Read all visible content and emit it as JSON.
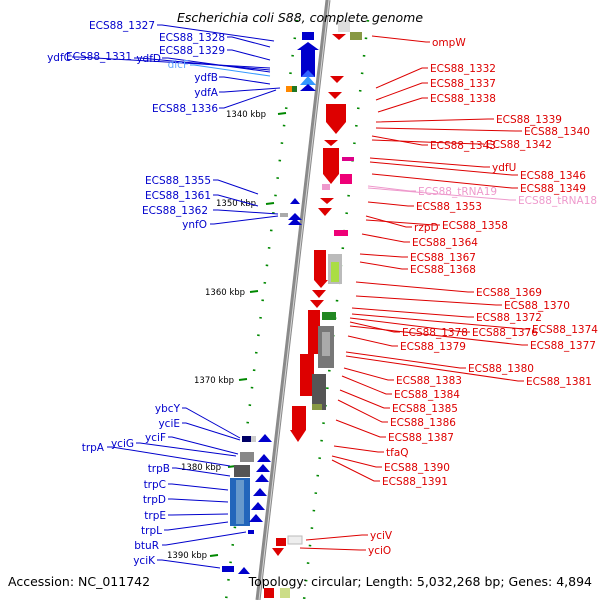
{
  "title": "Escherichia coli S88, complete genome",
  "footer": {
    "accession": "Accession: NC_011742",
    "topology": "Topology: circular; Length: 5,032,268 bp; Genes: 4,894"
  },
  "colors": {
    "forward": "#0000cc",
    "reverse": "#dd0000",
    "rna": "#ee99cc",
    "trna_dark": "#aaccee",
    "tick": "#008800",
    "backbone": "#888888"
  },
  "ticks": [
    "1340 kbp",
    "1350 kbp",
    "1360 kbp",
    "1370 kbp",
    "1380 kbp",
    "1390 kbp"
  ],
  "left_labels": [
    {
      "id": "ECS88_1327",
      "text": "ECS88_1327"
    },
    {
      "id": "ECS88_1328",
      "text": "ECS88_1328"
    },
    {
      "id": "ECS88_1329",
      "text": "ECS88_1329"
    },
    {
      "id": "ydfC",
      "text": "ydfC"
    },
    {
      "id": "ECS88_1331",
      "text": "ECS88_1331"
    },
    {
      "id": "ydfD",
      "text": "ydfD"
    },
    {
      "id": "dicF",
      "text": "dicF"
    },
    {
      "id": "ydfB",
      "text": "ydfB"
    },
    {
      "id": "ydfA",
      "text": "ydfA"
    },
    {
      "id": "ECS88_1336",
      "text": "ECS88_1336"
    },
    {
      "id": "ECS88_1355",
      "text": "ECS88_1355"
    },
    {
      "id": "ECS88_1361",
      "text": "ECS88_1361"
    },
    {
      "id": "ECS88_1362",
      "text": "ECS88_1362"
    },
    {
      "id": "ynfO",
      "text": "ynfO"
    },
    {
      "id": "ybcY",
      "text": "ybcY"
    },
    {
      "id": "yciE",
      "text": "yciE"
    },
    {
      "id": "yciF",
      "text": "yciF"
    },
    {
      "id": "trpA",
      "text": "trpA"
    },
    {
      "id": "yciG",
      "text": "yciG"
    },
    {
      "id": "trpB",
      "text": "trpB"
    },
    {
      "id": "trpC",
      "text": "trpC"
    },
    {
      "id": "trpD",
      "text": "trpD"
    },
    {
      "id": "trpE",
      "text": "trpE"
    },
    {
      "id": "trpL",
      "text": "trpL"
    },
    {
      "id": "btuR",
      "text": "btuR"
    },
    {
      "id": "yciK",
      "text": "yciK"
    }
  ],
  "right_labels": [
    {
      "id": "ompW",
      "text": "ompW"
    },
    {
      "id": "ECS88_1332",
      "text": "ECS88_1332"
    },
    {
      "id": "ECS88_1337",
      "text": "ECS88_1337"
    },
    {
      "id": "ECS88_1338",
      "text": "ECS88_1338"
    },
    {
      "id": "ECS88_1339",
      "text": "ECS88_1339"
    },
    {
      "id": "ECS88_1340",
      "text": "ECS88_1340"
    },
    {
      "id": "ECS88_1343",
      "text": "ECS88_1343"
    },
    {
      "id": "ECS88_1342",
      "text": "ECS88_1342"
    },
    {
      "id": "ydfU",
      "text": "ydfU"
    },
    {
      "id": "ECS88_1346",
      "text": "ECS88_1346"
    },
    {
      "id": "ECS88_1349",
      "text": "ECS88_1349"
    },
    {
      "id": "ECS88_tRNA19",
      "text": "ECS88_tRNA19"
    },
    {
      "id": "ECS88_tRNA18",
      "text": "ECS88_tRNA18"
    },
    {
      "id": "ECS88_1353",
      "text": "ECS88_1353"
    },
    {
      "id": "rzpD",
      "text": "rzpD"
    },
    {
      "id": "ECS88_1358",
      "text": "ECS88_1358"
    },
    {
      "id": "ECS88_1364",
      "text": "ECS88_1364"
    },
    {
      "id": "ECS88_1367",
      "text": "ECS88_1367"
    },
    {
      "id": "ECS88_1368",
      "text": "ECS88_1368"
    },
    {
      "id": "ECS88_1369",
      "text": "ECS88_1369"
    },
    {
      "id": "ECS88_1370",
      "text": "ECS88_1370"
    },
    {
      "id": "ECS88_1372",
      "text": "ECS88_1372"
    },
    {
      "id": "ECS88_1374",
      "text": "ECS88_1374"
    },
    {
      "id": "ECS88_1378",
      "text": "ECS88_1378"
    },
    {
      "id": "ECS88_1376",
      "text": "ECS88_1376"
    },
    {
      "id": "ECS88_1377",
      "text": "ECS88_1377"
    },
    {
      "id": "ECS88_1379",
      "text": "ECS88_1379"
    },
    {
      "id": "ECS88_1380",
      "text": "ECS88_1380"
    },
    {
      "id": "ECS88_1381",
      "text": "ECS88_1381"
    },
    {
      "id": "ECS88_1383",
      "text": "ECS88_1383"
    },
    {
      "id": "ECS88_1384",
      "text": "ECS88_1384"
    },
    {
      "id": "ECS88_1385",
      "text": "ECS88_1385"
    },
    {
      "id": "ECS88_1386",
      "text": "ECS88_1386"
    },
    {
      "id": "ECS88_1387",
      "text": "ECS88_1387"
    },
    {
      "id": "tfaQ",
      "text": "tfaQ"
    },
    {
      "id": "ECS88_1390",
      "text": "ECS88_1390"
    },
    {
      "id": "ECS88_1391",
      "text": "ECS88_1391"
    },
    {
      "id": "yciV",
      "text": "yciV"
    },
    {
      "id": "yciO",
      "text": "yciO"
    }
  ]
}
